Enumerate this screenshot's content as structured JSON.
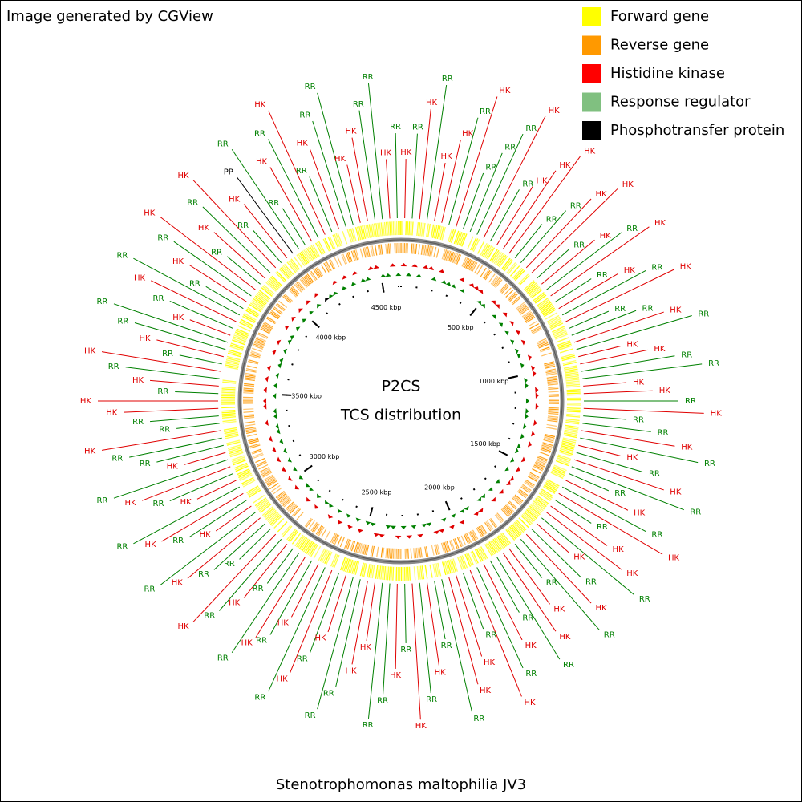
{
  "header": {
    "credit": "Image generated by CGView"
  },
  "legend": [
    {
      "label": "Forward gene",
      "color": "#ffff00"
    },
    {
      "label": "Reverse gene",
      "color": "#ff9900"
    },
    {
      "label": "Histidine kinase",
      "color": "#ff0000"
    },
    {
      "label": "Response regulator",
      "color": "#80c080"
    },
    {
      "label": "Phosphotransfer protein",
      "color": "#000000"
    }
  ],
  "center": {
    "title": "P2CS",
    "subtitle": "TCS distribution"
  },
  "organism": "Stenotrophomonas maltophilia JV3",
  "ruler": [
    "500 kbp",
    "1000 kbp",
    "1500 kbp",
    "2000 kbp",
    "2500 kbp",
    "3000 kbp",
    "3500 kbp",
    "4000 kbp",
    "4500 kbp"
  ],
  "features": [
    "HK",
    "RR",
    "HK",
    "RR",
    "HK",
    "HK",
    "RR",
    "HK",
    "RR",
    "RR",
    "RR",
    "HK",
    "RR",
    "HK",
    "HK",
    "HK",
    "RR",
    "RR",
    "HK",
    "HK",
    "RR",
    "HK",
    "RR",
    "HK",
    "RR",
    "HK",
    "RR",
    "HK",
    "RR",
    "RR",
    "HK",
    "RR",
    "HK",
    "HK",
    "RR",
    "RR",
    "HK",
    "HK",
    "RR",
    "HK",
    "RR",
    "RR",
    "HK",
    "RR",
    "HK",
    "RR",
    "HK",
    "RR",
    "RR",
    "HK",
    "RR",
    "HK",
    "RR",
    "HK",
    "HK",
    "RR",
    "HK",
    "RR",
    "HK",
    "RR",
    "RR",
    "HK",
    "HK",
    "RR",
    "RR",
    "HK",
    "RR",
    "HK",
    "RR",
    "HK",
    "HK",
    "RR",
    "RR",
    "HK",
    "RR",
    "HK",
    "RR",
    "HK",
    "RR",
    "RR",
    "HK",
    "HK",
    "RR",
    "RR",
    "HK",
    "RR",
    "HK",
    "RR",
    "HK",
    "RR",
    "HK",
    "RR",
    "RR",
    "HK",
    "RR",
    "HK",
    "RR",
    "RR",
    "HK",
    "RR",
    "HK",
    "RR",
    "HK",
    "RR",
    "HK",
    "RR",
    "HK",
    "RR",
    "HK",
    "RR",
    "RR",
    "HK",
    "RR",
    "RR",
    "HK",
    "HK",
    "RR",
    "HK",
    "RR",
    "HK",
    "RR",
    "HK",
    "RR",
    "RR",
    "HK",
    "RR",
    "HK",
    "RR",
    "RR",
    "HK",
    "RR",
    "HK",
    "RR",
    "HK",
    "RR",
    "HK",
    "RR",
    "HK",
    "PP",
    "RR",
    "RR",
    "HK",
    "RR",
    "HK",
    "RR",
    "HK",
    "RR",
    "RR",
    "HK",
    "HK",
    "RR",
    "RR",
    "HK",
    "RR"
  ]
}
